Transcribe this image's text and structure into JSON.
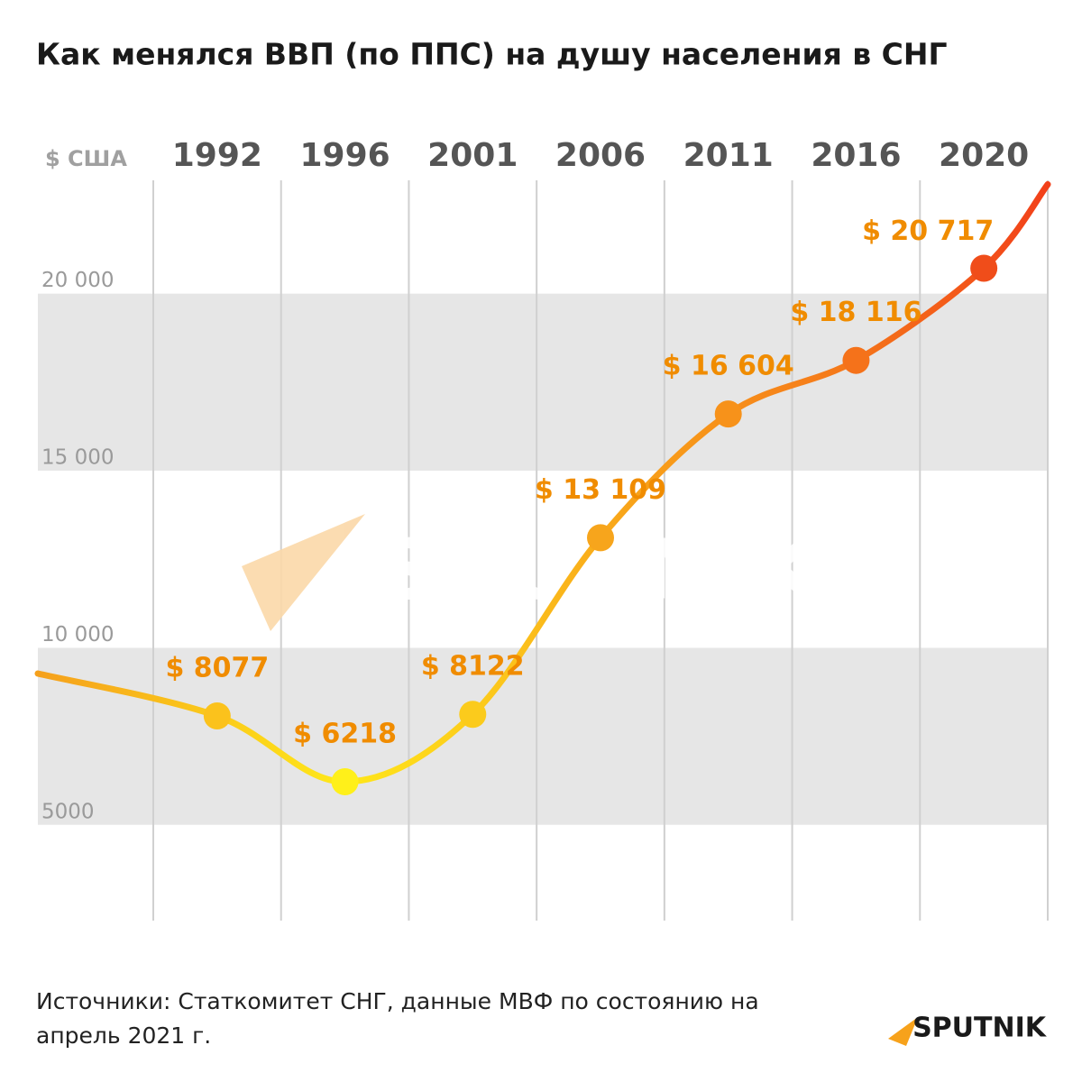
{
  "chart_data": {
    "type": "line",
    "title": "Как менялся ВВП (по ППС) на душу населения в СНГ",
    "y_unit": "$ США",
    "categories": [
      "1992",
      "1996",
      "2001",
      "2006",
      "2011",
      "2016",
      "2020"
    ],
    "values": [
      8077,
      6218,
      8122,
      13109,
      16604,
      18116,
      20717
    ],
    "value_labels": [
      "$ 8077",
      "$ 6218",
      "$ 8122",
      "$ 13 109",
      "$ 16 604",
      "$ 18 116",
      "$ 20 717"
    ],
    "point_colors": [
      "#fbc21c",
      "#fff01a",
      "#fbcb1c",
      "#f7a51c",
      "#f7921a",
      "#f5721a",
      "#f04d1a"
    ],
    "label_color": "#f08c00",
    "ylim": [
      2400,
      23200
    ],
    "yticks": [
      5000,
      {
        "value": 10000,
        "label": "10 000"
      },
      {
        "value": 15000,
        "label": "15 000"
      },
      {
        "value": 20000,
        "label": "20 000"
      }
    ],
    "grid": true
  },
  "source": "Источники: Статкомитет СНГ, данные МВФ по состоянию на апрель 2021 г.",
  "brand": "SPUTNIK"
}
